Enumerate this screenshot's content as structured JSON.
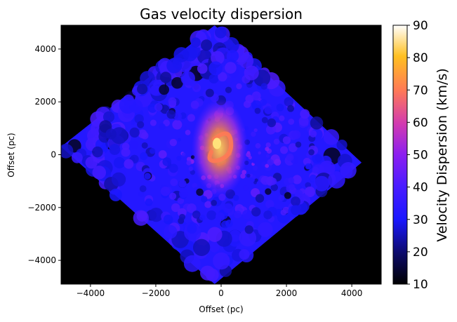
{
  "chart_data": {
    "type": "heatmap",
    "title": "Gas velocity dispersion",
    "xlabel": "Offset (pc)",
    "ylabel": "Offset (pc)",
    "xlim": [
      -4900,
      4900
    ],
    "ylim": [
      -4900,
      4900
    ],
    "xticks": [
      -4000,
      -2000,
      0,
      2000,
      4000
    ],
    "yticks": [
      -4000,
      -2000,
      0,
      2000,
      4000
    ],
    "grid": false,
    "background_color": "#000000",
    "colormap": "gnuplot2",
    "colorbar": {
      "label": "Velocity Dispersion (km/s)",
      "range": [
        10,
        90
      ],
      "ticks": [
        10,
        20,
        30,
        40,
        50,
        60,
        70,
        80,
        90
      ]
    },
    "map_footprint_corners": [
      [
        -200,
        4900
      ],
      [
        4300,
        -300
      ],
      [
        -200,
        -4900
      ],
      [
        -4900,
        300
      ]
    ],
    "features": {
      "typical_dispersion_outer_disk": 32,
      "central_ring_dispersion": 70,
      "center": [
        0,
        0
      ]
    }
  }
}
